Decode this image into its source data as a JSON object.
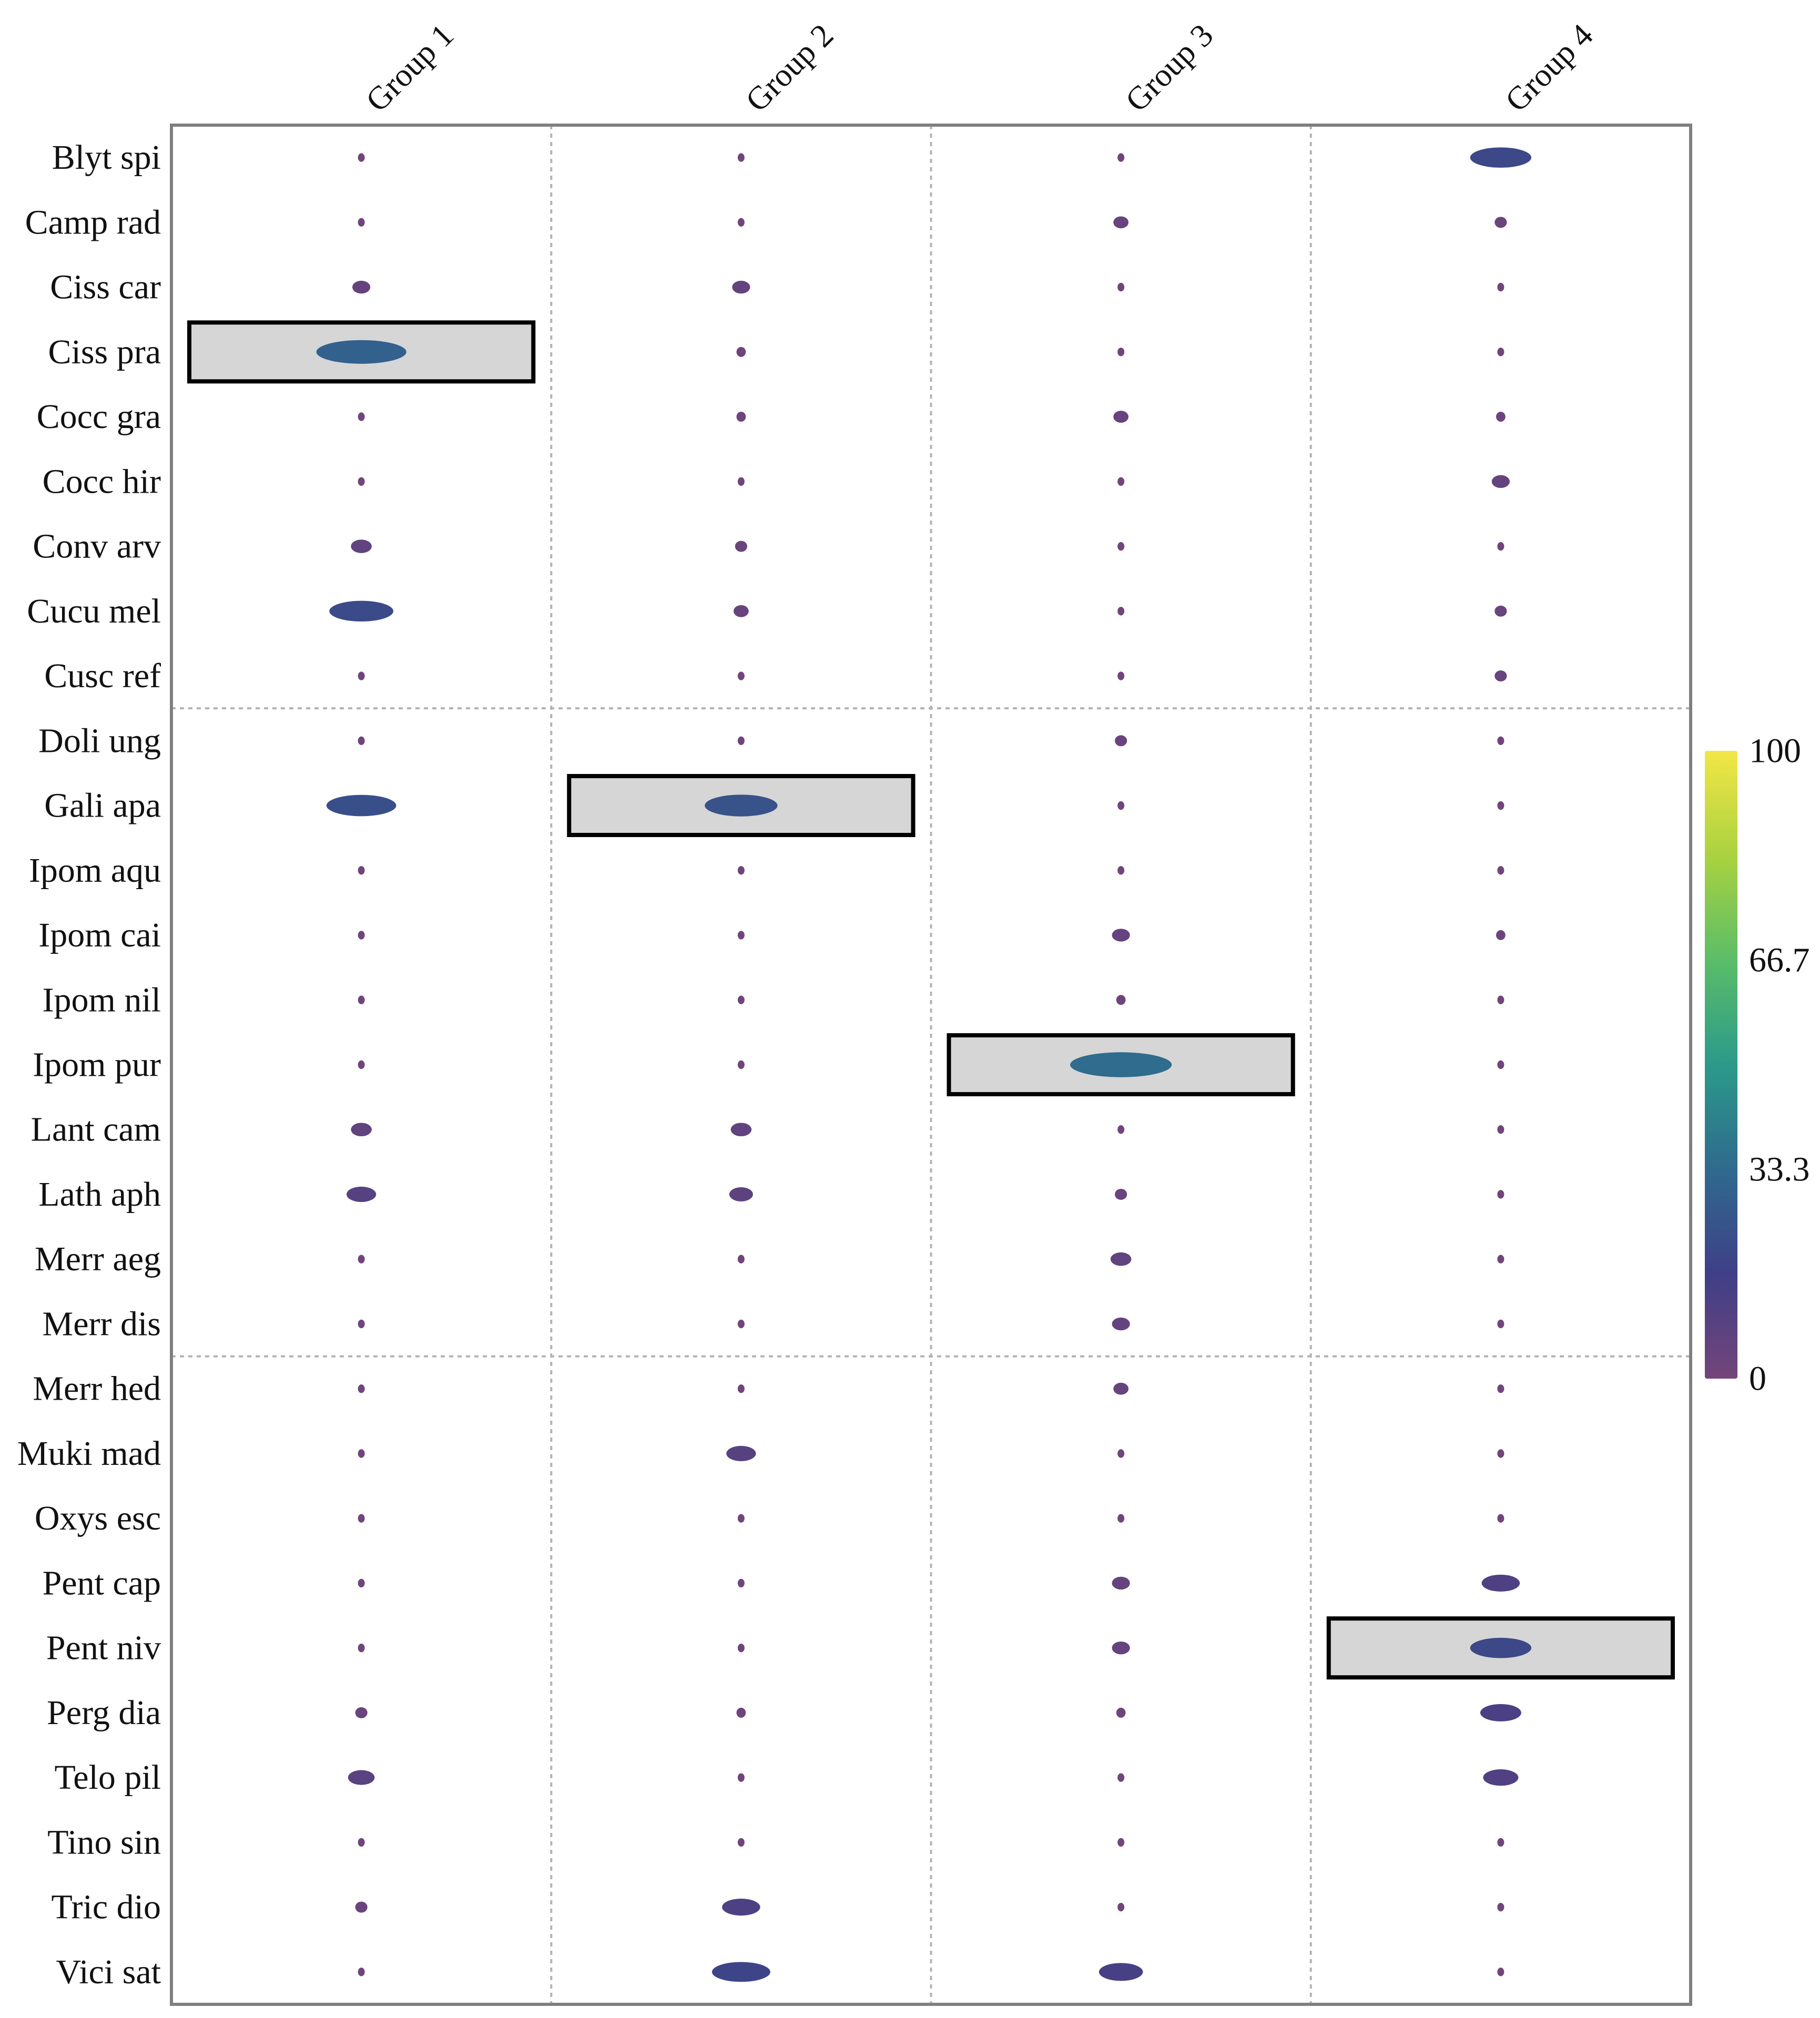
{
  "chart_data": {
    "type": "heatmap",
    "title": "",
    "columns": [
      "Group 1",
      "Group 2",
      "Group 3",
      "Group 4"
    ],
    "rows": [
      "Blyt spi",
      "Camp rad",
      "Ciss car",
      "Ciss pra",
      "Cocc gra",
      "Cocc hir",
      "Conv arv",
      "Cucu mel",
      "Cusc ref",
      "Doli ung",
      "Gali apa",
      "Ipom aqu",
      "Ipom cai",
      "Ipom nil",
      "Ipom pur",
      "Lant cam",
      "Lath aph",
      "Merr aeg",
      "Merr dis",
      "Merr hed",
      "Muki mad",
      "Oxys esc",
      "Pent cap",
      "Pent niv",
      "Perg dia",
      "Telo pil",
      "Tino sin",
      "Tric dio",
      "Vici sat"
    ],
    "values": [
      [
        1,
        1,
        1,
        20
      ],
      [
        1,
        1,
        4,
        3
      ],
      [
        5,
        5,
        1,
        1
      ],
      [
        30,
        2,
        1,
        1
      ],
      [
        1,
        2,
        4,
        2
      ],
      [
        1,
        1,
        1,
        5
      ],
      [
        6,
        3,
        1,
        1
      ],
      [
        21,
        4,
        1,
        3
      ],
      [
        1,
        1,
        1,
        3
      ],
      [
        1,
        1,
        3,
        1
      ],
      [
        23,
        24,
        1,
        1
      ],
      [
        1,
        1,
        1,
        1
      ],
      [
        1,
        1,
        5,
        2
      ],
      [
        1,
        1,
        2,
        1
      ],
      [
        1,
        1,
        34,
        1
      ],
      [
        6,
        6,
        1,
        1
      ],
      [
        9,
        7,
        3,
        1
      ],
      [
        1,
        1,
        6,
        1
      ],
      [
        1,
        1,
        5,
        1
      ],
      [
        1,
        1,
        4,
        1
      ],
      [
        1,
        9,
        1,
        1
      ],
      [
        1,
        1,
        1,
        1
      ],
      [
        1,
        1,
        5,
        12
      ],
      [
        1,
        1,
        5,
        20
      ],
      [
        3,
        2,
        2,
        13
      ],
      [
        8,
        1,
        1,
        11
      ],
      [
        1,
        1,
        1,
        1
      ],
      [
        3,
        12,
        1,
        1
      ],
      [
        1,
        19,
        14,
        1
      ]
    ],
    "highlighted": [
      {
        "row": "Ciss pra",
        "column": "Group 1"
      },
      {
        "row": "Gali apa",
        "column": "Group 2"
      },
      {
        "row": "Ipom pur",
        "column": "Group 3"
      },
      {
        "row": "Pent niv",
        "column": "Group 4"
      }
    ],
    "row_separators_after": [
      "Cusc ref",
      "Merr dis"
    ],
    "colorbar": {
      "range": [
        0,
        100
      ],
      "ticks": [
        "0",
        "33.3",
        "66.7",
        "100"
      ],
      "colormap": "viridis",
      "colors": [
        "#74457a",
        "#3f3f87",
        "#2f6a8e",
        "#2b9a8a",
        "#5bbd68",
        "#aad23f",
        "#f3e646"
      ]
    },
    "colors": {
      "frame": "#7f7f7f",
      "grid": "#b3b3b3",
      "highlight_fill": "#d6d6d6",
      "highlight_border": "#000000"
    }
  }
}
